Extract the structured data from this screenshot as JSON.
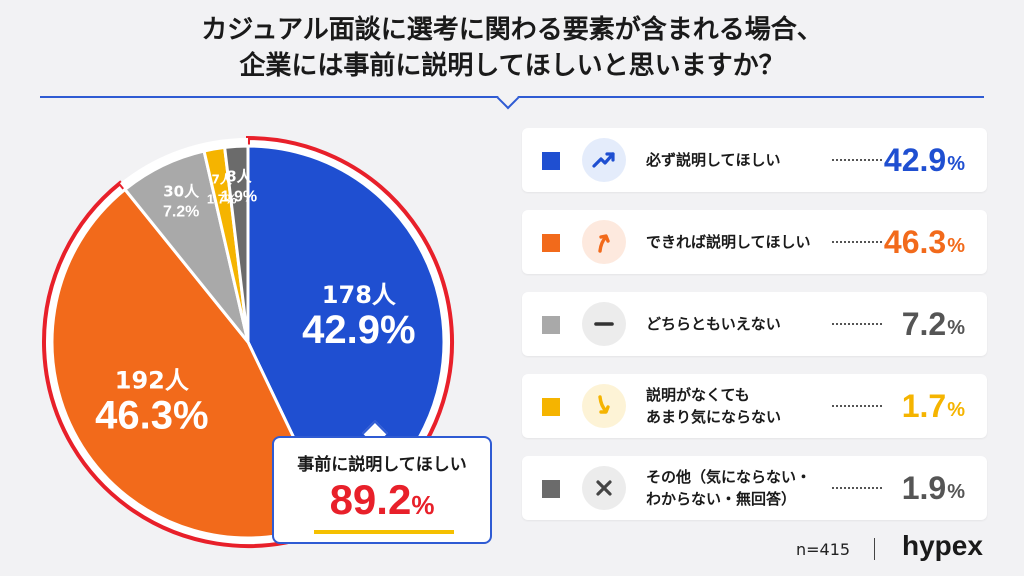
{
  "title": {
    "line1": "カジュアル面談に選考に関わる要素が含まれる場合、",
    "line2": "企業には事前に説明してほしいと思いますか？"
  },
  "chart_data": {
    "type": "pie",
    "start": "12 o'clock, clockwise",
    "slices": [
      {
        "label": "必ず説明してほしい",
        "count": 178,
        "count_label": "178人",
        "value": 42.9,
        "pct_label": "42.9",
        "color": "#1f4fd1",
        "icon": "trend-up-icon",
        "icon_bg": "#e4ecfb"
      },
      {
        "label": "できれば説明してほしい",
        "count": 192,
        "count_label": "192人",
        "value": 46.3,
        "pct_label": "46.3",
        "color": "#f26a1b",
        "icon": "arrow-up-icon",
        "icon_bg": "#fde9de"
      },
      {
        "label": "どちらともいえない",
        "count": 30,
        "count_label": "30人",
        "value": 7.2,
        "pct_label": "7.2",
        "color": "#a9a9a9",
        "icon": "dash-icon",
        "icon_bg": "#ececec"
      },
      {
        "label": "説明がなくても\nあまり気にならない",
        "count": 7,
        "count_label": "7人",
        "value": 1.7,
        "pct_label": "1.7",
        "color": "#f5b400",
        "icon": "arrow-down-icon",
        "icon_bg": "#fdf3d6"
      },
      {
        "label": "その他（気にならない・\nわからない・無回答）",
        "count": 8,
        "count_label": "8人",
        "value": 1.9,
        "pct_label": "1.9",
        "color": "#6b6b6b",
        "icon": "cross-icon",
        "icon_bg": "#ececec"
      }
    ],
    "pct_unit": "%"
  },
  "callout": {
    "label": "事前に説明してほしい",
    "value": "89.2",
    "unit": "%"
  },
  "footer": {
    "n": "n=415",
    "logo": "hypex"
  },
  "colors": {
    "accent": "#2f5bd3",
    "highlight_border": "#e8202a",
    "highlight_value": "#e8202a"
  }
}
